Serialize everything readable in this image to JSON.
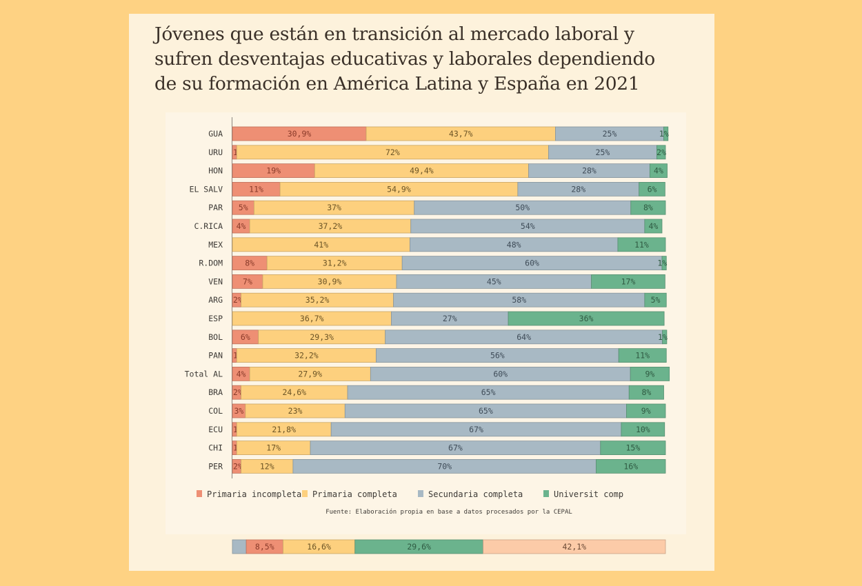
{
  "title_lines": [
    "Jóvenes que están en transición al mercado laboral y",
    "sufren desventajas educativas y laborales dependiendo",
    "de su formación en América Latina y España en 2021"
  ],
  "colors": {
    "primaria_incompleta": "#ee8f74",
    "primaria_completa": "#fdd07e",
    "secundaria_completa": "#a8b9c4",
    "universit_comp": "#6bb38d",
    "extra": "#fccba8",
    "label_dark": "#4a3a30"
  },
  "source": "Fuente: Elaboración propia en base a datos procesados por la CEPAL",
  "chart_data": [
    {
      "type": "bar",
      "orientation": "horizontal",
      "stacked": true,
      "title": "Jóvenes que están en transición al mercado laboral y sufren desventajas educativas y laborales dependiendo de su formación en América Latina y España en 2021",
      "xlabel": "",
      "ylabel": "",
      "xlim": [
        0,
        100
      ],
      "grid": false,
      "legend_position": "bottom",
      "categories": [
        "GUA",
        "URU",
        "HON",
        "EL SALV",
        "PAR",
        "C.RICA",
        "MEX",
        "R.DOM",
        "VEN",
        "ARG",
        "ESP",
        "BOL",
        "PAN",
        "Total AL",
        "BRA",
        "COL",
        "ECU",
        "CHI",
        "PER"
      ],
      "series": [
        {
          "name": "Primaria incompleta",
          "color_key": "primaria_incompleta",
          "values": [
            30.9,
            1,
            19,
            11,
            5,
            4,
            0,
            8,
            7,
            2,
            0,
            6,
            1,
            4,
            2,
            3,
            1,
            1,
            2
          ],
          "labels": [
            "30,9%",
            "1%",
            "19%",
            "11%",
            "5%",
            "4%",
            "",
            "8%",
            "7%",
            "2%",
            "",
            "6%",
            "1%",
            "4%",
            "2%",
            "3%",
            "1%",
            "1%",
            "2%"
          ]
        },
        {
          "name": "Primaria completa",
          "color_key": "primaria_completa",
          "values": [
            43.7,
            72,
            49.4,
            54.9,
            37,
            37.2,
            41,
            31.2,
            30.9,
            35.2,
            36.7,
            29.3,
            32.2,
            27.9,
            24.6,
            23,
            21.8,
            17,
            12
          ],
          "labels": [
            "43,7%",
            "72%",
            "49,4%",
            "54,9%",
            "37%",
            "37,2%",
            "41%",
            "31,2%",
            "30,9%",
            "35,2%",
            "36,7%",
            "29,3%",
            "32,2%",
            "27,9%",
            "24,6%",
            "23%",
            "21,8%",
            "17%",
            "12%"
          ]
        },
        {
          "name": "Secundaria completa",
          "color_key": "secundaria_completa",
          "values": [
            25,
            25,
            28,
            28,
            50,
            54,
            48,
            60,
            45,
            58,
            27,
            64,
            56,
            60,
            65,
            65,
            67,
            67,
            70
          ],
          "labels": [
            "25%",
            "25%",
            "28%",
            "28%",
            "50%",
            "54%",
            "48%",
            "60%",
            "45%",
            "58%",
            "27%",
            "64%",
            "56%",
            "60%",
            "65%",
            "65%",
            "67%",
            "67%",
            "70%"
          ]
        },
        {
          "name": "Universit comp",
          "color_key": "universit_comp",
          "values": [
            1,
            2,
            4,
            6,
            8,
            4,
            11,
            1,
            17,
            5,
            36,
            1,
            11,
            9,
            8,
            9,
            10,
            15,
            16
          ],
          "labels": [
            "1%",
            "2%",
            "4%",
            "6%",
            "8%",
            "4%",
            "11%",
            "1%",
            "17%",
            "5%",
            "36%",
            "1%",
            "11%",
            "9%",
            "8%",
            "9%",
            "10%",
            "15%",
            "16%"
          ]
        }
      ]
    },
    {
      "type": "bar",
      "orientation": "horizontal",
      "stacked": true,
      "title": "",
      "xlim": [
        0,
        100
      ],
      "categories": [
        ""
      ],
      "segments": [
        {
          "color_key": "secundaria_completa",
          "value": 3.2,
          "label": ""
        },
        {
          "color_key": "primaria_incompleta",
          "value": 8.5,
          "label": "8,5%"
        },
        {
          "color_key": "primaria_completa",
          "value": 16.6,
          "label": "16,6%"
        },
        {
          "color_key": "universit_comp",
          "value": 29.6,
          "label": "29,6%"
        },
        {
          "color_key": "extra",
          "value": 42.1,
          "label": "42,1%"
        }
      ]
    }
  ]
}
